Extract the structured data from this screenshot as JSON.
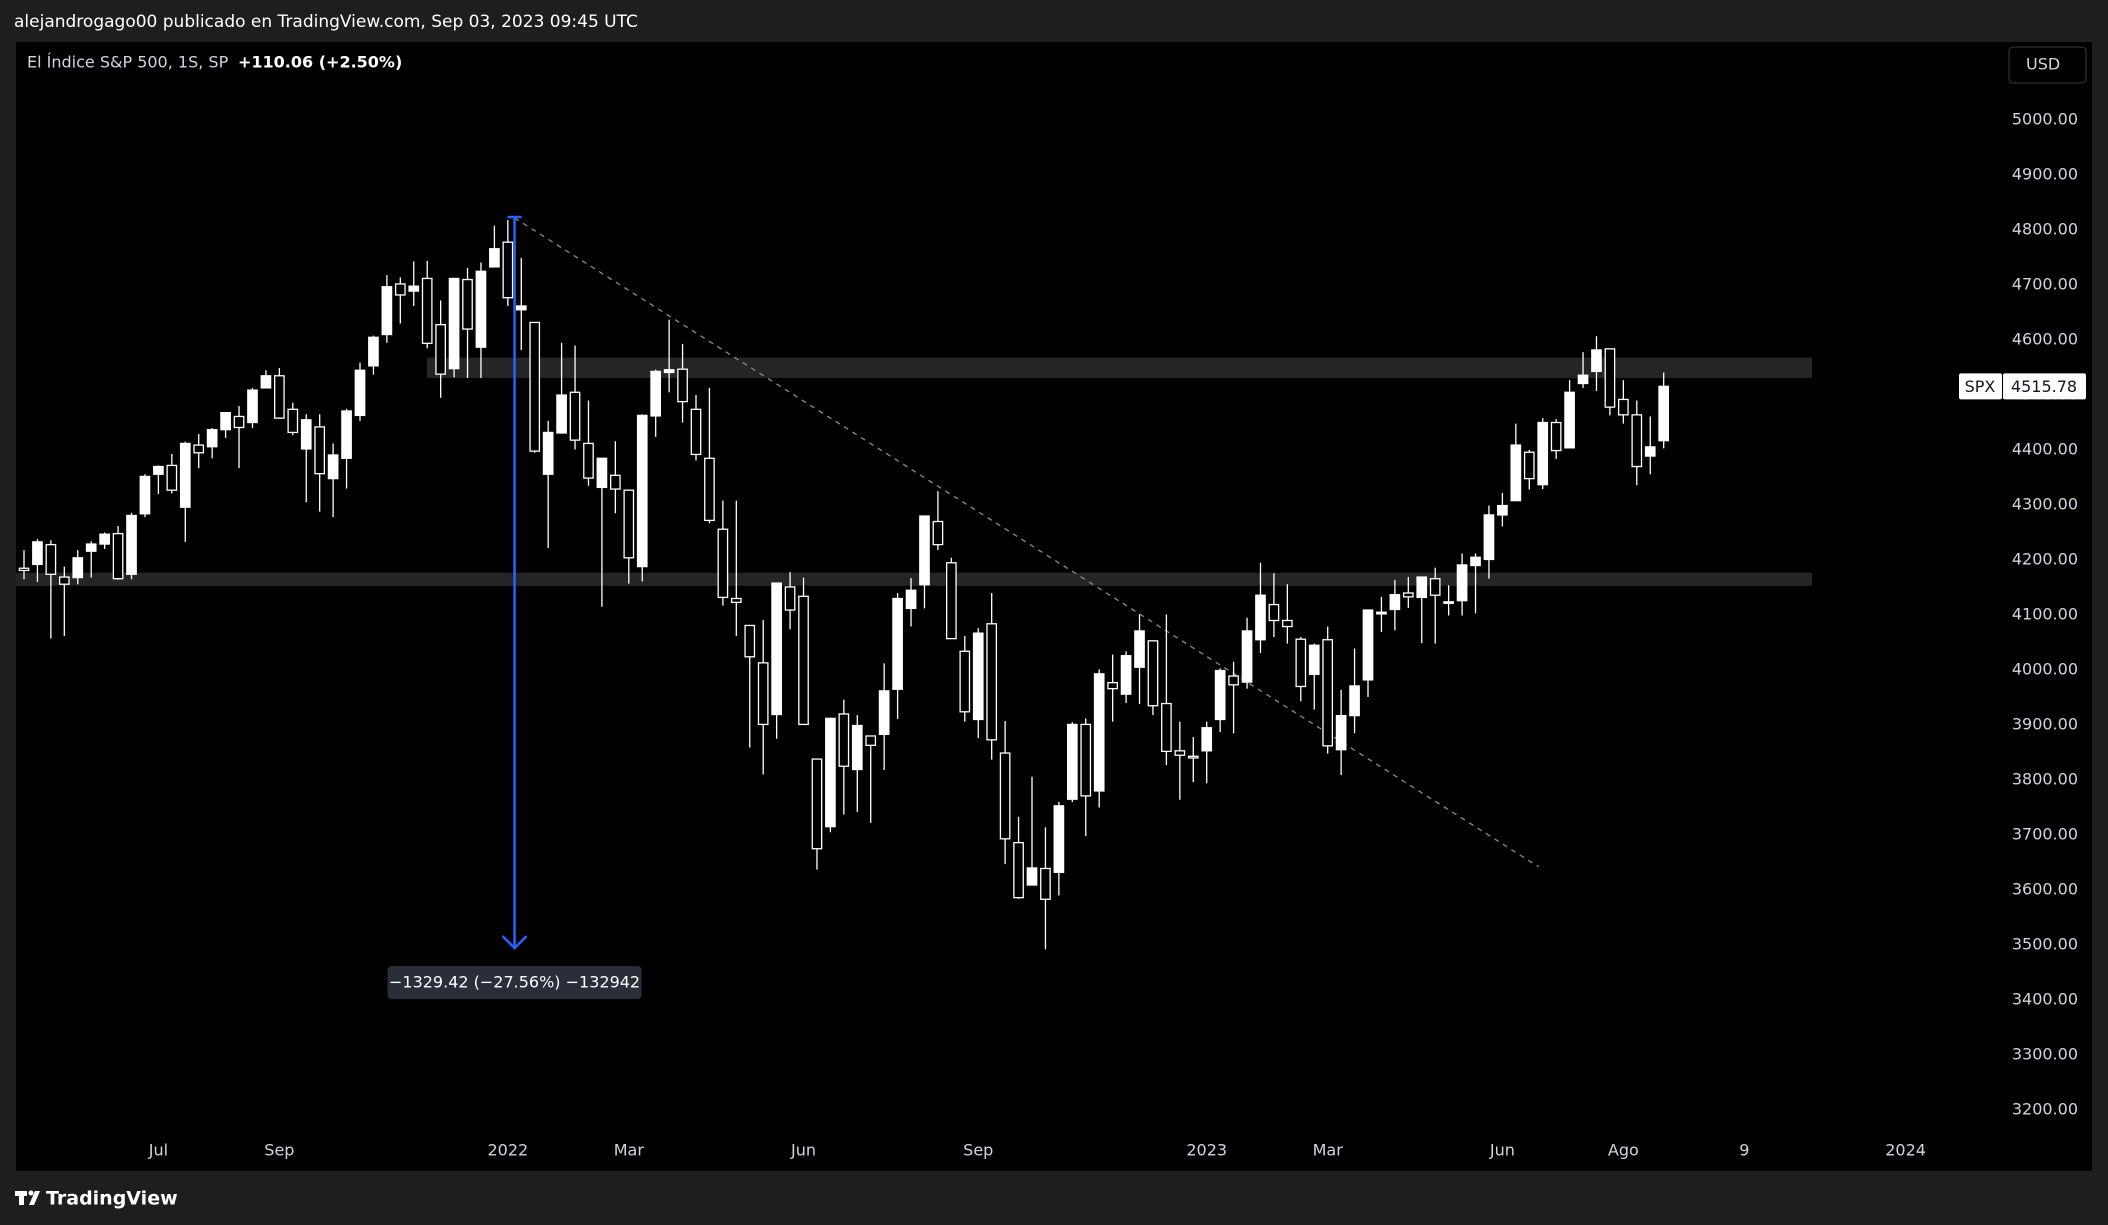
{
  "header": {
    "text": "alejandrogago00 publicado en TradingView.com, Sep 03, 2023 09:45 UTC"
  },
  "footer": {
    "brand": "TradingView"
  },
  "chart_data": {
    "type": "candlestick",
    "title": "El Índice S&P 500, 1S, SP",
    "change": "+110.06 (+2.50%)",
    "currency": "USD",
    "symbol": "SPX",
    "up_color": "#ffffff",
    "down_color": "#000000",
    "wick_color": "#ffffff",
    "categories": [
      null,
      null,
      null,
      null,
      null,
      null,
      null,
      null,
      null,
      null,
      "Jul",
      null,
      null,
      null,
      null,
      null,
      null,
      null,
      null,
      "Sep",
      null,
      null,
      null,
      null,
      null,
      null,
      null,
      null,
      null,
      null,
      null,
      null,
      null,
      null,
      null,
      null,
      "2022",
      null,
      null,
      null,
      null,
      null,
      null,
      null,
      null,
      "Mar",
      null,
      null,
      null,
      null,
      null,
      null,
      null,
      null,
      null,
      null,
      null,
      null,
      "Jun",
      null,
      null,
      null,
      null,
      null,
      null,
      null,
      null,
      null,
      null,
      null,
      null,
      "Sep",
      null,
      null,
      null,
      null,
      null,
      null,
      null,
      null,
      null,
      null,
      null,
      null,
      null,
      null,
      null,
      null,
      "2023",
      null,
      null,
      null,
      null,
      null,
      null,
      null,
      null,
      "Mar",
      null,
      null,
      null,
      null,
      null,
      null,
      null,
      null,
      null,
      null,
      null,
      null,
      "Jun",
      null,
      null,
      null,
      null,
      null,
      null,
      null,
      null,
      "Ago",
      null,
      null,
      null,
      null,
      null,
      null,
      null,
      null,
      "9",
      null,
      null,
      null,
      null,
      null,
      null,
      null,
      null,
      null,
      null,
      null,
      "2024",
      null,
      null
    ],
    "open": [
      4185,
      4192,
      4228,
      4169,
      4168,
      4216,
      4229,
      4248,
      4174,
      4284,
      4356,
      4372,
      4296,
      4409,
      4406,
      4437,
      4461,
      4450,
      4513,
      4535,
      4474,
      4402,
      4442,
      4348,
      4385,
      4463,
      4553,
      4610,
      4702,
      4689,
      4712,
      4628,
      4548,
      4710,
      4587,
      4733,
      4778,
      4655,
      4632,
      4356,
      4431,
      4505,
      4412,
      4332,
      4354,
      4327,
      4188,
      4462,
      4541,
      4547,
      4474,
      4385,
      4256,
      4130,
      4081,
      4013,
      3919,
      4151,
      4134,
      3838,
      3715,
      3920,
      3819,
      3880,
      3883,
      3965,
      4112,
      4155,
      4270,
      4195,
      4034,
      3910,
      4084,
      3849,
      3686,
      3609,
      3639,
      3632,
      3765,
      3901,
      3780,
      3977,
      3956,
      4005,
      4053,
      3939,
      3853,
      3843,
      3853,
      3910,
      3989,
      3978,
      4055,
      4119,
      4090,
      4056,
      3992,
      4055,
      3855,
      3917,
      3982,
      4102,
      4110,
      4140,
      4132,
      4166,
      4123,
      4126,
      4190,
      4201,
      4282,
      4308,
      4396,
      4337,
      4450,
      4404,
      4521,
      4543,
      4584,
      4492,
      4464,
      4389,
      4417,
      null,
      null,
      null,
      null,
      null,
      null,
      null,
      null,
      null,
      null,
      null,
      null,
      null,
      null,
      null,
      null,
      null,
      null,
      null,
      null
    ],
    "high": [
      4218,
      4238,
      4236,
      4188,
      4218,
      4234,
      4250,
      4262,
      4286,
      4356,
      4372,
      4393,
      4415,
      4429,
      4440,
      4468,
      4480,
      4513,
      4545,
      4549,
      4486,
      4465,
      4465,
      4412,
      4475,
      4559,
      4608,
      4718,
      4714,
      4743,
      4744,
      4672,
      4713,
      4731,
      4741,
      4808,
      4818,
      4749,
      4632,
      4453,
      4595,
      4590,
      4490,
      4385,
      4416,
      4327,
      4465,
      4546,
      4637,
      4593,
      4500,
      4513,
      4308,
      4308,
      4081,
      4091,
      4159,
      4178,
      4168,
      3838,
      3913,
      3946,
      3918,
      3880,
      4012,
      4140,
      4167,
      4280,
      4325,
      4204,
      4062,
      4076,
      4140,
      3907,
      3733,
      3806,
      3714,
      3760,
      3905,
      3912,
      4001,
      4028,
      4034,
      4101,
      4053,
      4101,
      3906,
      3878,
      3906,
      4003,
      4015,
      4095,
      4195,
      4176,
      4156,
      4060,
      4048,
      4079,
      3964,
      4039,
      4110,
      4133,
      4164,
      4169,
      4170,
      4186,
      4154,
      4212,
      4212,
      4299,
      4322,
      4448,
      4400,
      4458,
      4456,
      4527,
      4578,
      4607,
      4584,
      4527,
      4490,
      4461,
      4541,
      null,
      null,
      null,
      null,
      null,
      null,
      null,
      null,
      null,
      null,
      null,
      null,
      null,
      null,
      null,
      null,
      null,
      null,
      null,
      null
    ],
    "low": [
      4165,
      4160,
      4057,
      4062,
      4156,
      4168,
      4220,
      4164,
      4165,
      4278,
      4320,
      4321,
      4233,
      4367,
      4385,
      4422,
      4367,
      4440,
      4513,
      4457,
      4427,
      4305,
      4288,
      4278,
      4330,
      4453,
      4537,
      4595,
      4630,
      4662,
      4585,
      4495,
      4532,
      4531,
      4531,
      4733,
      4662,
      4582,
      4395,
      4222,
      4430,
      4401,
      4335,
      4115,
      4285,
      4157,
      4161,
      4424,
      4505,
      4450,
      4381,
      4267,
      4117,
      4062,
      3859,
      3810,
      3875,
      4074,
      3900,
      3637,
      3705,
      3737,
      3742,
      3722,
      3818,
      3911,
      4079,
      4112,
      4218,
      4057,
      3906,
      3876,
      3837,
      3647,
      3584,
      3609,
      3492,
      3590,
      3760,
      3698,
      3750,
      3906,
      3940,
      3938,
      3918,
      3827,
      3764,
      3796,
      3794,
      3887,
      3885,
      3966,
      4031,
      4060,
      4048,
      3943,
      3928,
      3848,
      3809,
      3885,
      3951,
      4069,
      4072,
      4113,
      4049,
      4048,
      4099,
      4099,
      4103,
      4166,
      4261,
      4307,
      4328,
      4329,
      4384,
      4404,
      4513,
      4507,
      4463,
      4448,
      4336,
      4356,
      4403,
      null,
      null,
      null,
      null,
      null,
      null,
      null,
      null,
      null,
      null,
      null,
      null,
      null,
      null,
      null,
      null,
      null,
      null,
      null,
      null
    ],
    "close": [
      4181,
      4233,
      4174,
      4156,
      4204,
      4229,
      4247,
      4166,
      4281,
      4352,
      4370,
      4327,
      4412,
      4395,
      4437,
      4468,
      4441,
      4509,
      4535,
      4458,
      4432,
      4455,
      4357,
      4391,
      4471,
      4545,
      4605,
      4697,
      4682,
      4698,
      4594,
      4538,
      4712,
      4620,
      4725,
      4766,
      4677,
      4662,
      4398,
      4432,
      4500,
      4418,
      4349,
      4385,
      4329,
      4204,
      4463,
      4543,
      4546,
      4488,
      4392,
      4272,
      4132,
      4123,
      4024,
      3901,
      4158,
      4109,
      3901,
      3675,
      3912,
      3825,
      3899,
      3863,
      3962,
      4130,
      4145,
      4280,
      4228,
      4057,
      3924,
      4067,
      3873,
      3693,
      3586,
      3640,
      3583,
      3753,
      3901,
      3771,
      3993,
      3966,
      4026,
      4071,
      3935,
      3852,
      3845,
      3840,
      3895,
      3999,
      3973,
      4071,
      4136,
      4090,
      4079,
      3970,
      4045,
      3862,
      3917,
      3971,
      4109,
      4105,
      4137,
      4133,
      4169,
      4136,
      4124,
      4191,
      4205,
      4282,
      4299,
      4409,
      4348,
      4450,
      4399,
      4505,
      4536,
      4582,
      4478,
      4464,
      4370,
      4405.72,
      4515.78,
      null,
      null,
      null,
      null,
      null,
      null,
      null,
      null,
      null,
      null,
      null,
      null,
      null,
      null,
      null,
      null,
      null,
      null,
      null,
      null
    ],
    "ylim": [
      3158,
      5142
    ],
    "yticks": [
      {
        "value": 5000,
        "label": "5000.00"
      },
      {
        "value": 4900,
        "label": "4900.00"
      },
      {
        "value": 4800,
        "label": "4800.00"
      },
      {
        "value": 4700,
        "label": "4700.00"
      },
      {
        "value": 4600,
        "label": "4600.00"
      },
      {
        "value": 4500,
        "label": "4500.00"
      },
      {
        "value": 4400,
        "label": "4400.00"
      },
      {
        "value": 4300,
        "label": "4300.00"
      },
      {
        "value": 4200,
        "label": "4200.00"
      },
      {
        "value": 4100,
        "label": "4100.00"
      },
      {
        "value": 4000,
        "label": "4000.00"
      },
      {
        "value": 3900,
        "label": "3900.00"
      },
      {
        "value": 3800,
        "label": "3800.00"
      },
      {
        "value": 3700,
        "label": "3700.00"
      },
      {
        "value": 3600,
        "label": "3600.00"
      },
      {
        "value": 3500,
        "label": "3500.00"
      },
      {
        "value": 3400,
        "label": "3400.00"
      },
      {
        "value": 3300,
        "label": "3300.00"
      },
      {
        "value": 3200,
        "label": "3200.00"
      }
    ],
    "grid": false,
    "zones": [
      {
        "from": 4531,
        "to": 4568
      },
      {
        "from": 4153,
        "to": 4177
      }
    ],
    "trendline": {
      "from": 4822,
      "to": 3642
    },
    "measure": {
      "from": 4823.7,
      "to": 3494.28,
      "label": "−1329.42 (−27.56%) −132942"
    }
  }
}
